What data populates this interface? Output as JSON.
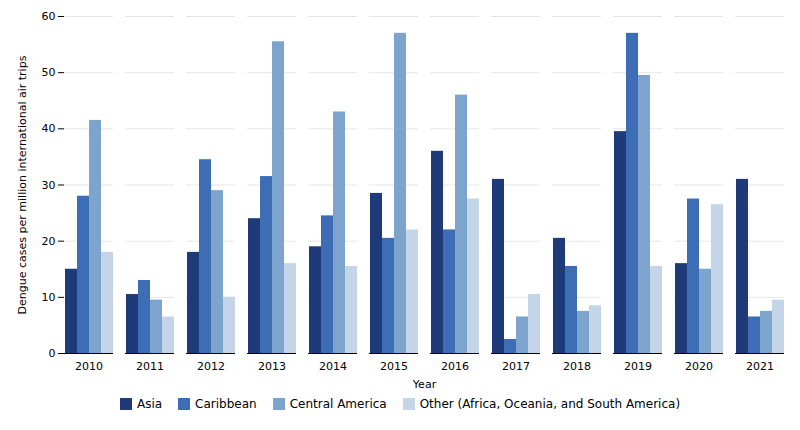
{
  "chart_data": {
    "type": "bar",
    "xlabel": "Year",
    "ylabel": "Dengue cases per million international air trips",
    "categories": [
      "2010",
      "2011",
      "2012",
      "2013",
      "2014",
      "2015",
      "2016",
      "2017",
      "2018",
      "2019",
      "2020",
      "2021"
    ],
    "series": [
      {
        "name": "Asia",
        "color": "#1f3a78",
        "values": [
          15,
          10.5,
          18,
          24,
          19,
          28.5,
          36,
          31,
          20.5,
          39.5,
          16,
          31
        ]
      },
      {
        "name": "Caribbean",
        "color": "#3d6db5",
        "values": [
          28,
          13,
          34.5,
          31.5,
          24.5,
          20.5,
          22,
          2.5,
          15.5,
          57,
          27.5,
          6.5
        ]
      },
      {
        "name": "Central America",
        "color": "#7da4cc",
        "values": [
          41.5,
          9.5,
          29,
          55.5,
          43,
          57,
          46,
          6.5,
          7.5,
          49.5,
          15,
          7.5
        ]
      },
      {
        "name": "Other (Africa, Oceania, and South America)",
        "color": "#c5d5e8",
        "values": [
          18,
          6.5,
          10,
          16,
          15.5,
          22,
          27.5,
          10.5,
          8.5,
          15.5,
          26.5,
          9.5
        ]
      }
    ],
    "ylim": [
      0,
      60
    ],
    "yticks": [
      0,
      10,
      20,
      30,
      40,
      50,
      60
    ],
    "grid": true,
    "legend": "bottom"
  }
}
